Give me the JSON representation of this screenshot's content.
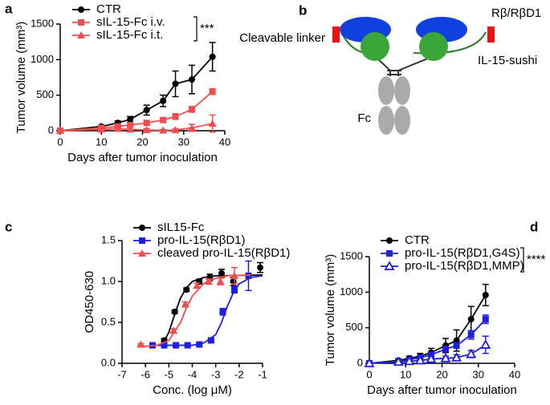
{
  "chart_data": [
    {
      "type": "line",
      "panel": "a",
      "xlabel": "Days after tumor inoculation",
      "ylabel": "Tumor volume (mm³)",
      "xlim": [
        0,
        40
      ],
      "ylim": [
        0,
        1500
      ],
      "xticks": [
        0,
        10,
        20,
        30,
        40
      ],
      "yticks": [
        0,
        500,
        1000,
        1500
      ],
      "annotation": "***",
      "series": [
        {
          "name": "CTR",
          "color": "#000000",
          "marker": "circle",
          "x": [
            0,
            10,
            14,
            17,
            21,
            25,
            28,
            32,
            37
          ],
          "values": [
            0,
            60,
            110,
            160,
            290,
            420,
            660,
            720,
            1040
          ],
          "errors": [
            0,
            20,
            30,
            40,
            70,
            80,
            180,
            200,
            200
          ]
        },
        {
          "name": "sIL-15-Fc i.v.",
          "color": "#f04e4e",
          "marker": "square",
          "x": [
            0,
            10,
            14,
            17,
            21,
            25,
            28,
            32,
            37
          ],
          "values": [
            0,
            40,
            60,
            80,
            110,
            150,
            200,
            300,
            550
          ],
          "errors": [
            0,
            15,
            20,
            20,
            30,
            30,
            40,
            40,
            40
          ]
        },
        {
          "name": "sIL-15-Fc i.t.",
          "color": "#f04e4e",
          "marker": "triangle",
          "x": [
            0,
            10,
            14,
            17,
            21,
            25,
            28,
            32,
            37
          ],
          "values": [
            0,
            20,
            30,
            20,
            10,
            5,
            10,
            40,
            100
          ],
          "errors": [
            0,
            10,
            15,
            30,
            20,
            10,
            20,
            50,
            120
          ]
        }
      ]
    },
    {
      "type": "scatter",
      "panel": "c",
      "xlabel": "Conc. (log μM)",
      "ylabel": "OD450-630",
      "xlim": [
        -7,
        -1
      ],
      "ylim": [
        0,
        1.5
      ],
      "xticks": [
        -7,
        -6,
        -5,
        -4,
        -3,
        -2,
        -1
      ],
      "yticks": [
        {
          "value": 0,
          "label": "0.0"
        },
        {
          "value": 0.5,
          "label": "0.5"
        },
        {
          "value": 1,
          "label": "1.0"
        },
        {
          "value": 1.5,
          "label": "1.5"
        }
      ],
      "series": [
        {
          "name": "sIL15-Fc",
          "color": "#000000",
          "marker": "circle",
          "x": [
            -5.2,
            -4.75,
            -4.25,
            -3.7,
            -3.25,
            -2.75,
            -2.25,
            -1.1
          ],
          "values": [
            0.28,
            0.63,
            0.9,
            1.0,
            1.05,
            1.1,
            1.0,
            1.17
          ],
          "errors": [
            0.02,
            0.02,
            0.02,
            0.03,
            0.04,
            0.05,
            0.05,
            0.06
          ],
          "fit": {
            "x": [
              -5.3,
              -5.0,
              -4.75,
              -4.5,
              -4.25,
              -4.0,
              -3.5,
              -3.0,
              -1.0
            ],
            "values": [
              0.22,
              0.38,
              0.6,
              0.8,
              0.92,
              1.0,
              1.05,
              1.07,
              1.08
            ]
          }
        },
        {
          "name": "pro-IL-15(RβD1)",
          "color": "#1f1fe0",
          "marker": "square",
          "x": [
            -5.7,
            -5.2,
            -4.7,
            -4.2,
            -3.7,
            -3.2,
            -2.7,
            -2.2,
            -1.6
          ],
          "values": [
            0.22,
            0.22,
            0.22,
            0.22,
            0.23,
            0.28,
            0.63,
            0.9,
            1.07
          ],
          "errors": [
            0.01,
            0.01,
            0.01,
            0.01,
            0.01,
            0.02,
            0.04,
            0.04,
            0.18
          ],
          "fit": {
            "x": [
              -5.8,
              -4.0,
              -3.5,
              -3.0,
              -2.75,
              -2.5,
              -2.25,
              -2.0,
              -1.5,
              -1.0
            ],
            "values": [
              0.22,
              0.22,
              0.25,
              0.35,
              0.5,
              0.7,
              0.86,
              0.97,
              1.05,
              1.07
            ]
          }
        },
        {
          "name": "cleaved pro-IL-15(RβD1)",
          "color": "#f04e4e",
          "marker": "triangle",
          "x": [
            -6.2,
            -4.8,
            -4.3,
            -3.8,
            -3.3,
            -2.8,
            -2.2
          ],
          "values": [
            0.23,
            0.4,
            0.72,
            0.95,
            1.0,
            1.0,
            1.07
          ],
          "errors": [
            0.01,
            0.02,
            0.03,
            0.03,
            0.03,
            0.04,
            0.1
          ],
          "fit": {
            "x": [
              -6.3,
              -5.5,
              -5.0,
              -4.5,
              -4.25,
              -4.0,
              -3.5,
              -3.0,
              -2.5,
              -1.5
            ],
            "values": [
              0.2,
              0.22,
              0.28,
              0.5,
              0.68,
              0.82,
              0.98,
              1.04,
              1.07,
              1.08
            ]
          }
        }
      ]
    },
    {
      "type": "line",
      "panel": "d",
      "xlabel": "Days after tumor inoculation",
      "ylabel": "Tumor volume (mm³)",
      "xlim": [
        0,
        40
      ],
      "ylim": [
        0,
        1500
      ],
      "xticks": [
        0,
        10,
        20,
        30,
        40
      ],
      "yticks": [
        0,
        500,
        1000,
        1500
      ],
      "annotation": "****",
      "series": [
        {
          "name": "CTR",
          "color": "#000000",
          "marker": "circle",
          "x": [
            0,
            8,
            11,
            14,
            17,
            21,
            24,
            28,
            32
          ],
          "values": [
            0,
            40,
            70,
            100,
            150,
            250,
            320,
            620,
            960
          ],
          "errors": [
            0,
            20,
            30,
            40,
            60,
            100,
            150,
            180,
            150
          ]
        },
        {
          "name": "pro-IL-15(RβD1,G4S)",
          "color": "#1f1fe0",
          "marker": "square",
          "x": [
            0,
            8,
            11,
            14,
            17,
            21,
            24,
            28,
            32
          ],
          "values": [
            0,
            30,
            50,
            80,
            120,
            200,
            250,
            400,
            620
          ],
          "errors": [
            0,
            10,
            15,
            20,
            30,
            40,
            40,
            60,
            60
          ]
        },
        {
          "name": "pro-IL-15(RβD1,MMP)",
          "color": "#1f1fe0",
          "marker": "triangle-open",
          "x": [
            0,
            8,
            11,
            14,
            17,
            21,
            24,
            28,
            32
          ],
          "values": [
            0,
            20,
            30,
            40,
            60,
            70,
            80,
            130,
            260
          ],
          "errors": [
            0,
            10,
            10,
            15,
            20,
            30,
            40,
            50,
            120
          ]
        }
      ]
    }
  ],
  "diagram": {
    "panel": "b",
    "receptor": "Rβ/RβD1",
    "linker": "Cleavable linker",
    "sushi": "IL-15-sushi",
    "fc": "Fc"
  }
}
